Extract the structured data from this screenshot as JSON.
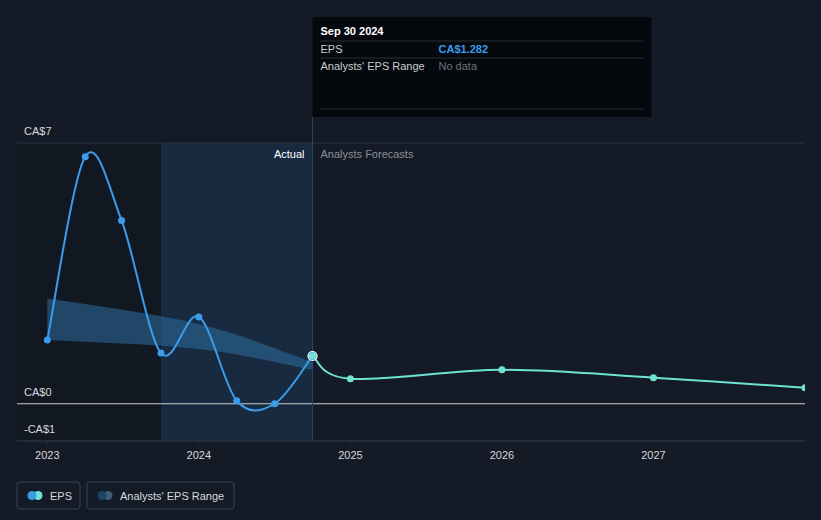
{
  "chart_data": {
    "type": "line",
    "xlim": [
      2022.8,
      2028.0
    ],
    "xticks": [
      2023,
      2024,
      2025,
      2026,
      2027
    ],
    "ylim": [
      -1,
      7
    ],
    "yticks": [
      {
        "value": -1,
        "label": "-CA$1"
      },
      {
        "value": 0,
        "label": "CA$0"
      },
      {
        "value": 7,
        "label": "CA$7"
      }
    ],
    "grid": true,
    "legend": "bottom-left",
    "series": [
      {
        "name": "EPS",
        "color": "#3b9ce9",
        "marker": "circle",
        "line_style": "solid",
        "x": [
          2023.0,
          2023.25,
          2023.49,
          2023.75,
          2024.0,
          2024.25,
          2024.5,
          2024.75
        ],
        "values": [
          1.71,
          6.63,
          4.92,
          1.36,
          2.33,
          0.08,
          0.0,
          1.282
        ]
      },
      {
        "color": "#6ee3d3",
        "marker": "circle",
        "line_style": "solid",
        "x": [
          2024.75,
          2025.0,
          2026.0,
          2027.0,
          2028.0
        ],
        "values": [
          1.282,
          0.67,
          0.91,
          0.7,
          0.43
        ]
      }
    ],
    "range": {
      "name": "Analysts' EPS Range",
      "color": "#2f6da3",
      "x": [
        2023.0,
        2024.0,
        2024.75
      ],
      "low": [
        1.71,
        1.47,
        0.91
      ],
      "high": [
        2.83,
        2.14,
        1.12
      ]
    },
    "annotations": [
      "Actual",
      "Analysts Forecasts"
    ],
    "tooltip": {
      "title": "Sep 30 2024",
      "rows": [
        {
          "label": "EPS",
          "value": "CA$1.282"
        },
        {
          "label": "Analysts' EPS Range",
          "value": "No data"
        }
      ]
    }
  }
}
